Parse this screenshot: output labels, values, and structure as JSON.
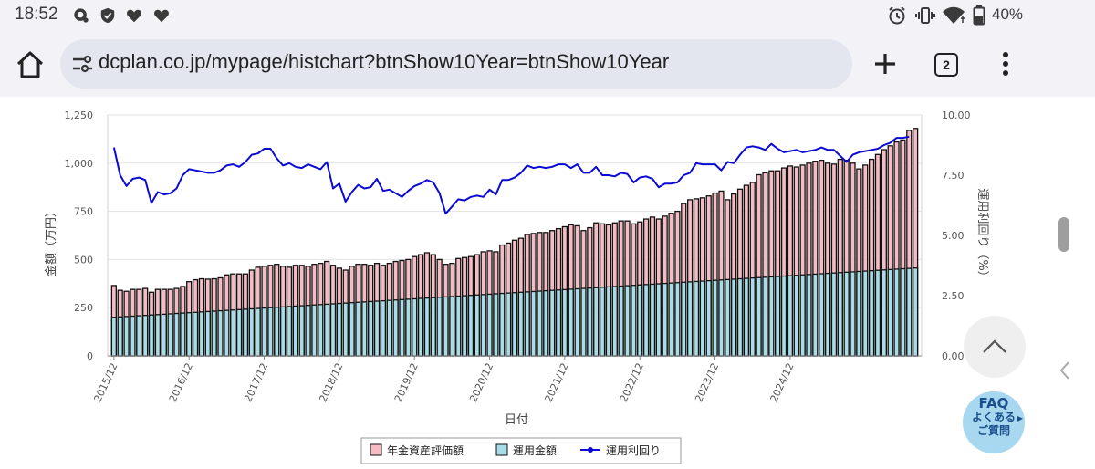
{
  "status_bar": {
    "time": "18:52",
    "left_icons": [
      "assistant-icon",
      "shield-icon",
      "heart-icon",
      "heart-icon"
    ],
    "right_icons": [
      "alarm-icon",
      "vibrate-icon",
      "wifi-icon",
      "battery-icon"
    ],
    "battery": "40%"
  },
  "browser": {
    "url": "dcplan.co.jp/mypage/histchart?btnShow10Year=btnShow10Year",
    "tab_count": "2",
    "buttons": [
      "home-icon",
      "plus-icon",
      "tabs-icon",
      "more-vert-icon"
    ]
  },
  "chart_data": {
    "type": "bar",
    "xlabel": "日付",
    "ylabel": "金額（万円）",
    "y2label": "運用利回り（%）",
    "ylim": [
      0,
      1250
    ],
    "y2lim": [
      0,
      10
    ],
    "yticks": [
      "0",
      "250",
      "500",
      "750",
      "1,000",
      "1,250"
    ],
    "y2ticks": [
      "0.00",
      "2.50",
      "5.00",
      "7.50",
      "10.00"
    ],
    "xticks": [
      "2015/12",
      "2016/12",
      "2017/12",
      "2018/12",
      "2019/12",
      "2020/12",
      "2021/12",
      "2022/12",
      "2023/12",
      "2024/12"
    ],
    "legend_position": "bottom",
    "colors": {
      "eval": "#f5bcc4",
      "invest": "#a8dce6",
      "yield": "#0a0ad2",
      "edge": "#111111"
    },
    "series": [
      {
        "name": "年金資産評価額",
        "type": "bar",
        "values": [
          365,
          340,
          335,
          345,
          345,
          350,
          330,
          345,
          345,
          345,
          350,
          360,
          385,
          395,
          400,
          398,
          400,
          405,
          420,
          425,
          425,
          425,
          445,
          460,
          465,
          470,
          475,
          465,
          460,
          470,
          470,
          465,
          475,
          480,
          490,
          470,
          455,
          445,
          465,
          475,
          475,
          470,
          480,
          470,
          480,
          490,
          495,
          500,
          515,
          525,
          535,
          525,
          500,
          475,
          480,
          505,
          510,
          515,
          525,
          540,
          545,
          540,
          575,
          585,
          600,
          610,
          630,
          635,
          640,
          640,
          650,
          660,
          670,
          680,
          675,
          650,
          665,
          690,
          685,
          680,
          690,
          700,
          700,
          685,
          695,
          710,
          720,
          710,
          725,
          740,
          750,
          790,
          810,
          815,
          820,
          830,
          845,
          855,
          810,
          840,
          865,
          885,
          900,
          940,
          950,
          960,
          960,
          975,
          985,
          980,
          990,
          1000,
          1010,
          1015,
          1000,
          995,
          1020,
          1015,
          1000,
          970,
          990,
          1020,
          1045,
          1070,
          1090,
          1110,
          1120,
          1170,
          1180
        ]
      },
      {
        "name": "運用金額",
        "type": "bar",
        "values": [
          200,
          202,
          204,
          206,
          208,
          210,
          212,
          214,
          216,
          218,
          220,
          222,
          224,
          226,
          228,
          230,
          232,
          234,
          236,
          238,
          240,
          242,
          244,
          246,
          248,
          250,
          252,
          254,
          256,
          258,
          260,
          262,
          264,
          266,
          268,
          270,
          272,
          274,
          276,
          278,
          280,
          282,
          284,
          286,
          288,
          290,
          292,
          294,
          296,
          298,
          300,
          302,
          304,
          306,
          308,
          310,
          312,
          314,
          316,
          318,
          320,
          322,
          324,
          326,
          328,
          330,
          332,
          334,
          336,
          338,
          340,
          342,
          344,
          346,
          348,
          350,
          352,
          354,
          356,
          358,
          360,
          362,
          364,
          366,
          368,
          370,
          372,
          374,
          376,
          378,
          380,
          382,
          384,
          386,
          388,
          390,
          392,
          394,
          396,
          398,
          400,
          402,
          404,
          406,
          408,
          410,
          412,
          414,
          416,
          418,
          420,
          422,
          424,
          426,
          428,
          430,
          432,
          434,
          436,
          438,
          440,
          442,
          444,
          446,
          448,
          450,
          452,
          454,
          456
        ]
      },
      {
        "name": "運用利回り",
        "type": "line",
        "axis": "right",
        "values": [
          8.65,
          7.5,
          7.05,
          7.35,
          7.4,
          7.3,
          6.35,
          6.8,
          6.7,
          6.75,
          6.95,
          7.5,
          7.75,
          7.7,
          7.65,
          7.6,
          7.6,
          7.7,
          7.9,
          7.95,
          7.85,
          8.05,
          8.35,
          8.4,
          8.6,
          8.6,
          8.2,
          7.9,
          8.0,
          7.85,
          7.8,
          7.95,
          7.85,
          7.75,
          8.05,
          6.95,
          7.15,
          6.4,
          6.8,
          7.1,
          6.95,
          7.0,
          7.35,
          6.85,
          6.9,
          6.75,
          6.6,
          6.85,
          7.05,
          7.15,
          7.3,
          7.2,
          6.75,
          5.9,
          6.2,
          6.5,
          6.45,
          6.6,
          6.65,
          6.6,
          6.9,
          6.7,
          7.3,
          7.3,
          7.4,
          7.6,
          7.9,
          7.8,
          7.85,
          7.8,
          7.85,
          7.95,
          7.95,
          7.8,
          7.95,
          7.6,
          7.6,
          7.85,
          7.5,
          7.5,
          7.45,
          7.6,
          7.55,
          7.2,
          7.4,
          7.45,
          7.35,
          7.0,
          7.15,
          7.15,
          7.2,
          7.5,
          7.6,
          8.0,
          7.95,
          7.95,
          7.95,
          7.7,
          8.05,
          8.0,
          8.35,
          8.65,
          8.7,
          8.65,
          8.55,
          8.8,
          8.6,
          8.45,
          8.5,
          8.55,
          8.45,
          8.5,
          8.55,
          8.65,
          8.55,
          8.55,
          8.3,
          8.05,
          8.35,
          8.45,
          8.5,
          8.55,
          8.6,
          8.75,
          8.85,
          9.05,
          9.05,
          9.1
        ]
      }
    ]
  },
  "overlay": {
    "faq_title": "FAQ",
    "faq_line1": "よくある",
    "faq_line2": "ご質問",
    "up_button_icon": "chevron-up-icon"
  }
}
